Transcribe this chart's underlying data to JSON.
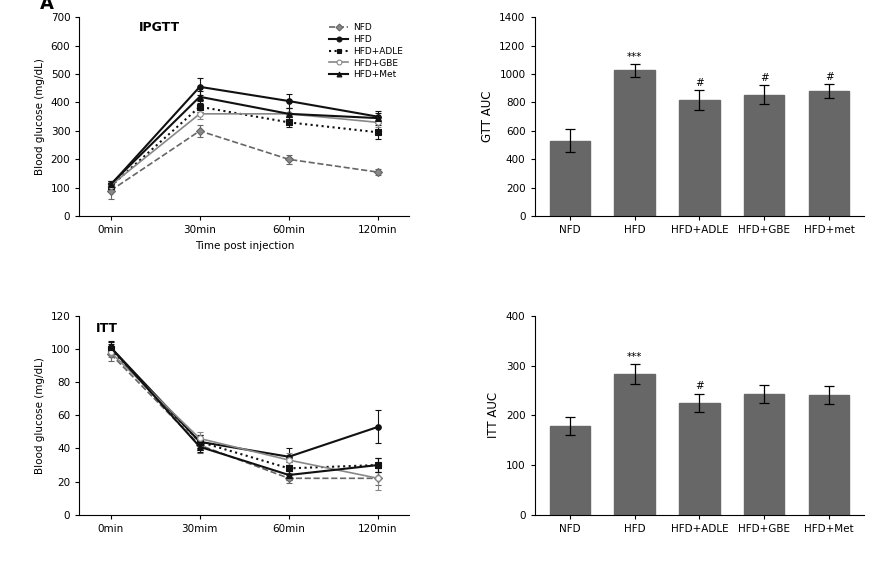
{
  "gtt_line": {
    "time_labels": [
      "0min",
      "30min",
      "60min",
      "120min"
    ],
    "NFD": {
      "mean": [
        90,
        300,
        200,
        155
      ],
      "err": [
        30,
        20,
        15,
        10
      ]
    },
    "HFD": {
      "mean": [
        110,
        455,
        405,
        350
      ],
      "err": [
        15,
        30,
        25,
        20
      ]
    },
    "HFD+ADLE": {
      "mean": [
        105,
        385,
        330,
        295
      ],
      "err": [
        12,
        20,
        18,
        25
      ]
    },
    "HFD+GBE": {
      "mean": [
        108,
        360,
        360,
        330
      ],
      "err": [
        10,
        18,
        22,
        18
      ]
    },
    "HFD+Met": {
      "mean": [
        112,
        420,
        360,
        345
      ],
      "err": [
        12,
        22,
        22,
        18
      ]
    }
  },
  "gtt_bar": {
    "categories": [
      "NFD",
      "HFD",
      "HFD+ADLE",
      "HFD+GBE",
      "HFD+met"
    ],
    "means": [
      530,
      1025,
      820,
      855,
      880
    ],
    "errors": [
      80,
      45,
      70,
      65,
      50
    ],
    "annotations": [
      "",
      "***",
      "#",
      "#",
      "#"
    ],
    "ylabel": "GTT AUC",
    "ylim": [
      0,
      1400
    ],
    "yticks": [
      0,
      200,
      400,
      600,
      800,
      1000,
      1200,
      1400
    ],
    "bar_color": "#676767"
  },
  "itt_line": {
    "time_labels": [
      "0min",
      "30mim",
      "60min",
      "120min"
    ],
    "NFD": {
      "mean": [
        97,
        42,
        22,
        22
      ],
      "err": [
        4,
        5,
        3,
        4
      ]
    },
    "HFD": {
      "mean": [
        101,
        44,
        35,
        53
      ],
      "err": [
        4,
        4,
        5,
        10
      ]
    },
    "HFD+ADLE": {
      "mean": [
        100,
        44,
        28,
        30
      ],
      "err": [
        3,
        4,
        4,
        4
      ]
    },
    "HFD+GBE": {
      "mean": [
        98,
        46,
        33,
        22
      ],
      "err": [
        3,
        4,
        4,
        7
      ]
    },
    "HFD+Met": {
      "mean": [
        101,
        41,
        24,
        30
      ],
      "err": [
        3,
        3,
        3,
        4
      ]
    }
  },
  "itt_bar": {
    "categories": [
      "NFD",
      "HFD",
      "HFD+ADLE",
      "HFD+GBE",
      "HFD+Met"
    ],
    "means": [
      178,
      283,
      225,
      243,
      240
    ],
    "errors": [
      18,
      20,
      18,
      18,
      18
    ],
    "annotations": [
      "",
      "***",
      "#",
      "",
      ""
    ],
    "ylabel": "ITT AUC",
    "ylim": [
      0,
      400
    ],
    "yticks": [
      0,
      100,
      200,
      300,
      400
    ],
    "bar_color": "#676767"
  },
  "line_styles": {
    "NFD": {
      "color": "#666666",
      "linestyle": "--",
      "marker": "D",
      "markersize": 4,
      "linewidth": 1.2,
      "mfc": "#888888"
    },
    "HFD": {
      "color": "#111111",
      "linestyle": "-",
      "marker": "o",
      "markersize": 4,
      "linewidth": 1.5,
      "mfc": "#111111"
    },
    "HFD+ADLE": {
      "color": "#111111",
      "linestyle": ":",
      "marker": "s",
      "markersize": 4,
      "linewidth": 1.5,
      "mfc": "#111111"
    },
    "HFD+GBE": {
      "color": "#888888",
      "linestyle": "-",
      "marker": "o",
      "markersize": 4,
      "linewidth": 1.2,
      "mfc": "white"
    },
    "HFD+Met": {
      "color": "#111111",
      "linestyle": "-",
      "marker": "^",
      "markersize": 4,
      "linewidth": 1.5,
      "mfc": "#111111"
    }
  }
}
